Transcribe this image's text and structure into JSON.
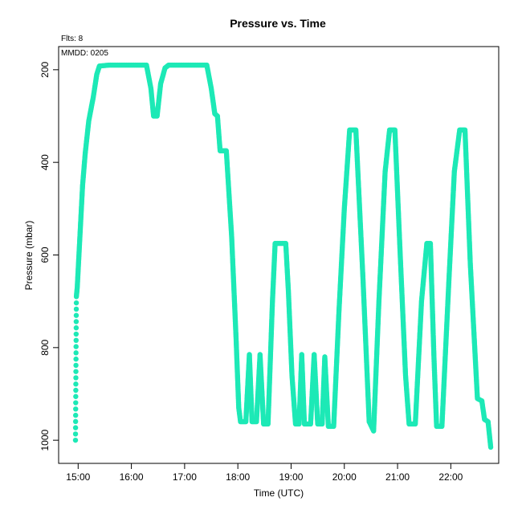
{
  "chart_data": {
    "type": "scatter",
    "title": "Pressure  vs. Time",
    "annotations": [
      "Flts: 8",
      "MMDD: 0205"
    ],
    "xlabel": "Time (UTC)",
    "ylabel": "Pressure (mbar)",
    "x_ticks": [
      "15:00",
      "16:00",
      "17:00",
      "18:00",
      "19:00",
      "20:00",
      "21:00",
      "22:00"
    ],
    "y_ticks": [
      200,
      400,
      600,
      800,
      1000
    ],
    "xlim": [
      "14:38",
      "22:54"
    ],
    "ylim": [
      1050,
      150
    ],
    "y_axis_inverted": true,
    "grid": false,
    "marker_color": "#1de9b6",
    "series": [
      {
        "points": [
          [
            "14:57",
            1000
          ],
          [
            "14:58",
            690
          ],
          [
            "14:59",
            670
          ],
          [
            "15:02",
            560
          ],
          [
            "15:05",
            450
          ],
          [
            "15:08",
            380
          ],
          [
            "15:12",
            310
          ],
          [
            "15:17",
            260
          ],
          [
            "15:21",
            210
          ],
          [
            "15:24",
            192
          ],
          [
            "15:35",
            190
          ],
          [
            "16:00",
            190
          ],
          [
            "16:17",
            190
          ],
          [
            "16:22",
            240
          ],
          [
            "16:25",
            300
          ],
          [
            "16:29",
            300
          ],
          [
            "16:33",
            230
          ],
          [
            "16:38",
            196
          ],
          [
            "16:42",
            190
          ],
          [
            "17:00",
            190
          ],
          [
            "17:25",
            190
          ],
          [
            "17:30",
            240
          ],
          [
            "17:34",
            295
          ],
          [
            "17:37",
            300
          ],
          [
            "17:40",
            375
          ],
          [
            "17:47",
            375
          ],
          [
            "17:53",
            560
          ],
          [
            "17:58",
            780
          ],
          [
            "18:01",
            930
          ],
          [
            "18:03",
            960
          ],
          [
            "18:09",
            960
          ],
          [
            "18:13",
            815
          ],
          [
            "18:16",
            960
          ],
          [
            "18:21",
            960
          ],
          [
            "18:25",
            815
          ],
          [
            "18:29",
            965
          ],
          [
            "18:34",
            965
          ],
          [
            "18:39",
            700
          ],
          [
            "18:42",
            575
          ],
          [
            "18:54",
            575
          ],
          [
            "18:57",
            680
          ],
          [
            "19:01",
            860
          ],
          [
            "19:05",
            965
          ],
          [
            "19:09",
            965
          ],
          [
            "19:12",
            815
          ],
          [
            "19:15",
            965
          ],
          [
            "19:22",
            965
          ],
          [
            "19:26",
            815
          ],
          [
            "19:30",
            965
          ],
          [
            "19:35",
            965
          ],
          [
            "19:38",
            820
          ],
          [
            "19:42",
            970
          ],
          [
            "19:48",
            970
          ],
          [
            "19:54",
            720
          ],
          [
            "20:00",
            500
          ],
          [
            "20:06",
            330
          ],
          [
            "20:13",
            330
          ],
          [
            "20:21",
            650
          ],
          [
            "20:28",
            960
          ],
          [
            "20:33",
            980
          ],
          [
            "20:39",
            700
          ],
          [
            "20:46",
            420
          ],
          [
            "20:51",
            330
          ],
          [
            "20:57",
            330
          ],
          [
            "21:03",
            600
          ],
          [
            "21:09",
            860
          ],
          [
            "21:13",
            965
          ],
          [
            "21:20",
            965
          ],
          [
            "21:27",
            700
          ],
          [
            "21:33",
            575
          ],
          [
            "21:37",
            575
          ],
          [
            "21:41",
            820
          ],
          [
            "21:44",
            970
          ],
          [
            "21:50",
            970
          ],
          [
            "21:58",
            650
          ],
          [
            "22:04",
            420
          ],
          [
            "22:10",
            330
          ],
          [
            "22:16",
            330
          ],
          [
            "22:22",
            620
          ],
          [
            "22:30",
            910
          ],
          [
            "22:35",
            915
          ],
          [
            "22:38",
            955
          ],
          [
            "22:42",
            960
          ],
          [
            "22:45",
            1015
          ]
        ]
      }
    ]
  }
}
